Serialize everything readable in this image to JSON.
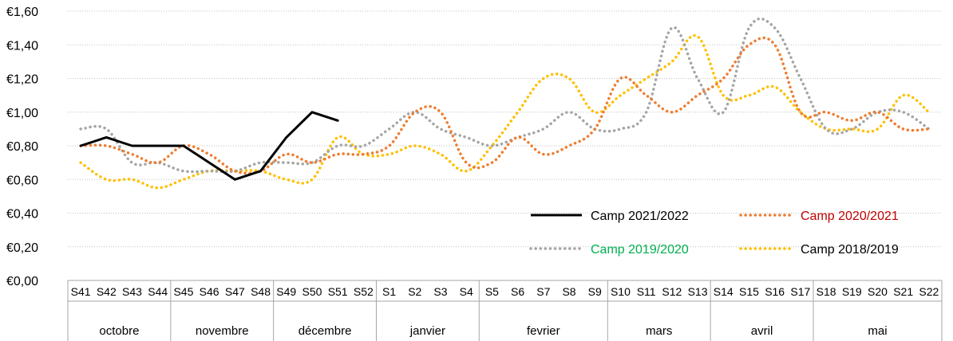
{
  "chart_data": {
    "type": "line",
    "title": "",
    "ylim": [
      0,
      1.6
    ],
    "y_ticks": [
      "€0,00",
      "€0,20",
      "€0,40",
      "€0,60",
      "€0,80",
      "€1,00",
      "€1,20",
      "€1,40",
      "€1,60"
    ],
    "grid": "horizontal dotted",
    "legend_position": "bottom-right",
    "categories": [
      "S41",
      "S42",
      "S43",
      "S44",
      "S45",
      "S46",
      "S47",
      "S48",
      "S49",
      "S50",
      "S51",
      "S52",
      "S1",
      "S2",
      "S3",
      "S4",
      "S5",
      "S6",
      "S7",
      "S8",
      "S9",
      "S10",
      "S11",
      "S12",
      "S13",
      "S14",
      "S15",
      "S16",
      "S17",
      "S18",
      "S19",
      "S20",
      "S21",
      "S22"
    ],
    "months": [
      {
        "label": "octobre",
        "weeks": 4
      },
      {
        "label": "novembre",
        "weeks": 4
      },
      {
        "label": "décembre",
        "weeks": 4
      },
      {
        "label": "janvier",
        "weeks": 4
      },
      {
        "label": "fevrier",
        "weeks": 5
      },
      {
        "label": "mars",
        "weeks": 4
      },
      {
        "label": "avril",
        "weeks": 4
      },
      {
        "label": "mai",
        "weeks": 5
      }
    ],
    "series": [
      {
        "name": "Camp 2021/2022",
        "color": "#000000",
        "label_color": "#000000",
        "style": "solid",
        "values": [
          0.8,
          0.85,
          0.8,
          0.8,
          0.8,
          0.7,
          0.6,
          0.65,
          0.85,
          1.0,
          0.95,
          null,
          null,
          null,
          null,
          null,
          null,
          null,
          null,
          null,
          null,
          null,
          null,
          null,
          null,
          null,
          null,
          null,
          null,
          null,
          null,
          null,
          null,
          null
        ]
      },
      {
        "name": "Camp 2020/2021",
        "color": "#ED7D31",
        "label_color": "#C00000",
        "style": "dotted",
        "values": [
          0.8,
          0.8,
          0.75,
          0.7,
          0.8,
          0.75,
          0.65,
          0.65,
          0.75,
          0.7,
          0.75,
          0.75,
          0.8,
          1.0,
          1.0,
          0.7,
          0.7,
          0.85,
          0.75,
          0.8,
          0.9,
          1.2,
          1.1,
          1.0,
          1.1,
          1.2,
          1.4,
          1.4,
          1.0,
          1.0,
          0.95,
          1.0,
          0.9,
          0.9
        ]
      },
      {
        "name": "Camp 2019/2020",
        "color": "#A5A5A5",
        "label_color": "#00B050",
        "style": "dotted",
        "values": [
          0.9,
          0.9,
          0.7,
          0.7,
          0.65,
          0.65,
          0.65,
          0.7,
          0.7,
          0.7,
          0.8,
          0.8,
          0.9,
          1.0,
          0.9,
          0.85,
          0.8,
          0.85,
          0.9,
          1.0,
          0.9,
          0.9,
          1.0,
          1.5,
          1.2,
          1.0,
          1.5,
          1.5,
          1.2,
          0.9,
          0.9,
          1.0,
          1.0,
          0.9
        ]
      },
      {
        "name": "Camp 2018/2019",
        "color": "#FFC000",
        "label_color": "#000000",
        "style": "dotted",
        "values": [
          0.7,
          0.6,
          0.6,
          0.55,
          0.6,
          0.65,
          0.65,
          0.65,
          0.6,
          0.6,
          0.85,
          0.75,
          0.75,
          0.8,
          0.75,
          0.65,
          0.8,
          1.0,
          1.2,
          1.2,
          1.0,
          1.1,
          1.2,
          1.3,
          1.45,
          1.1,
          1.1,
          1.15,
          1.0,
          0.9,
          0.9,
          0.9,
          1.1,
          1.0
        ]
      }
    ]
  }
}
